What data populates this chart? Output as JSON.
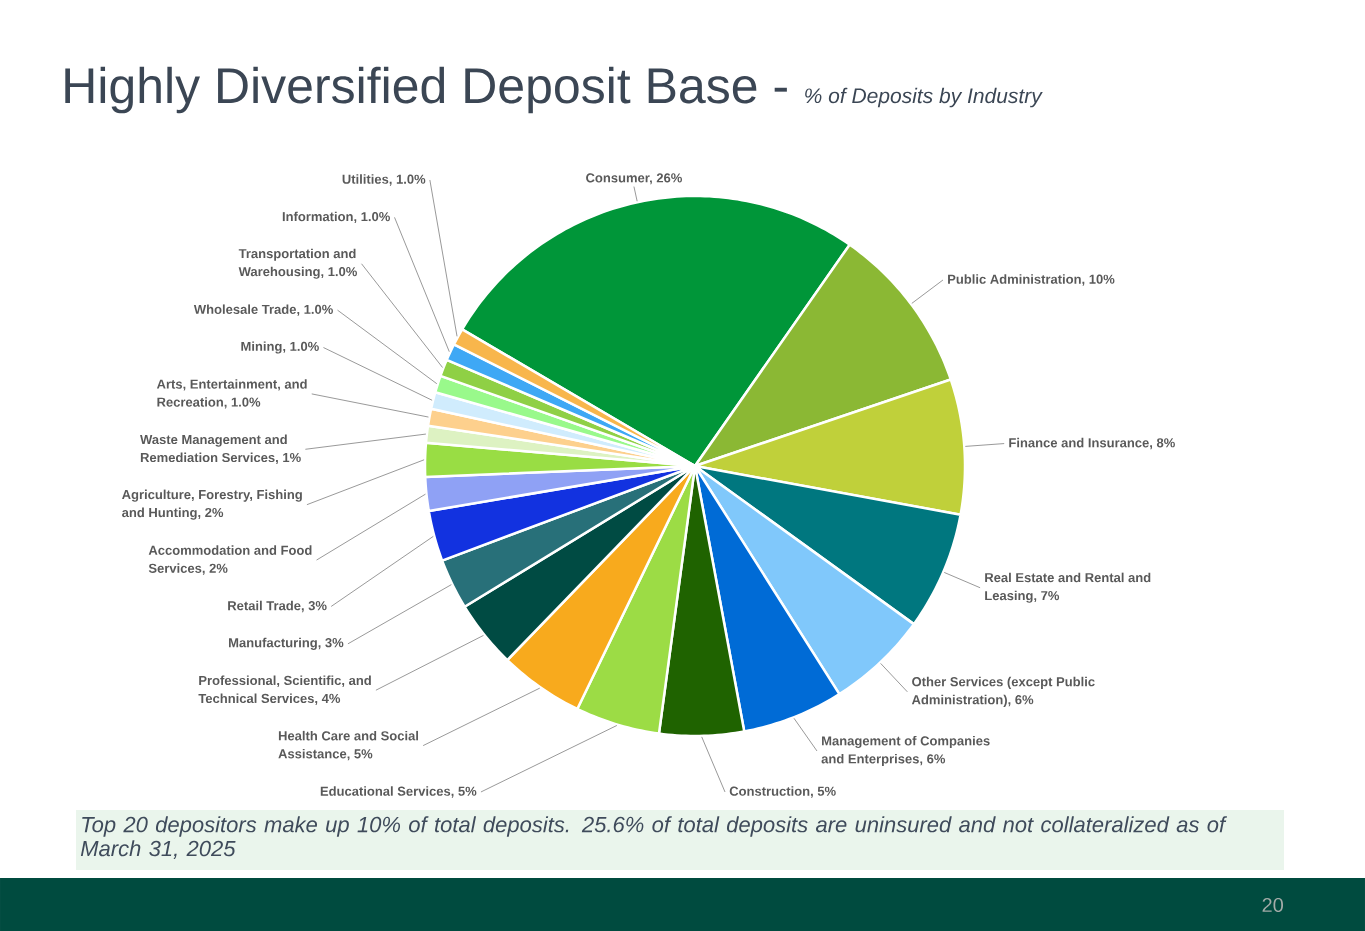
{
  "chart_data": {
    "type": "pie",
    "title": "Highly Diversified Deposit Base -",
    "subtitle": "% of Deposits by Industry",
    "categories": [
      "Consumer, 26%",
      "Public Administration, 10%",
      "Finance and Insurance, 8%",
      "Real Estate and Rental and Leasing, 7%",
      "Other Services (except Public Administration), 6%",
      "Management of Companies and Enterprises, 6%",
      "Construction, 5%",
      "Educational Services, 5%",
      "Health Care and Social Assistance, 5%",
      "Professional, Scientific, and Technical Services, 4%",
      "Manufacturing, 3%",
      "Retail Trade, 3%",
      "Accommodation and Food Services, 2%",
      "Agriculture, Forestry, Fishing and Hunting, 2%",
      "Waste Management and Remediation Services, 1%",
      "Arts, Entertainment, and Recreation, 1.0%",
      "Mining, 1.0%",
      "Wholesale Trade, 1.0%",
      "Transportation and Warehousing, 1.0%",
      "Information, 1.0%",
      "Utilities, 1.0%"
    ],
    "values": [
      26,
      10,
      8,
      7,
      6,
      6,
      5,
      5,
      5,
      4,
      3,
      3,
      2,
      2,
      1,
      1.0,
      1.0,
      1.0,
      1.0,
      1.0,
      1.0
    ],
    "colors": [
      "#009639",
      "#8bb834",
      "#c0d03a",
      "#00777f",
      "#80c8fb",
      "#006bd6",
      "#1f6300",
      "#9cdc45",
      "#f8aa1d",
      "#004b43",
      "#287079",
      "#1232e0",
      "#8fa1f5",
      "#99dd44",
      "#ddf2c2",
      "#fdd08d",
      "#d0ecfd",
      "#99f98b",
      "#8fd045",
      "#3ea8f5",
      "#f8b64c"
    ],
    "annotations": [
      "Top 20 depositors make up 10% of total deposits. 25.6% of total deposits are uninsured and not collateralized as of March 31, 2025",
      "20"
    ]
  }
}
